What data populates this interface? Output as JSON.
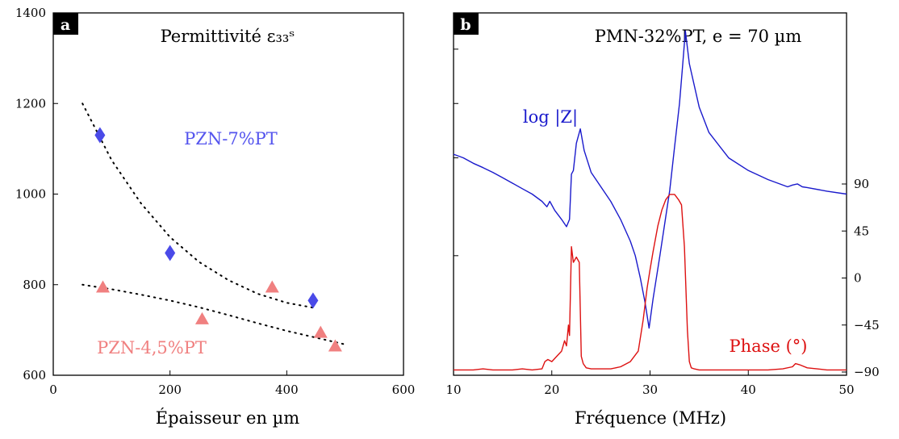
{
  "chart_data": [
    {
      "type": "scatter",
      "panel_label": "a",
      "title": "Permittivité ε₃₃ˢ",
      "xlabel": "Épaisseur en µm",
      "ylabel": "",
      "xlim": [
        0,
        600
      ],
      "ylim": [
        600,
        1400
      ],
      "x_ticks": [
        "0",
        "200",
        "400",
        "600"
      ],
      "y_ticks": [
        "600",
        "800",
        "1000",
        "1200",
        "1400"
      ],
      "grid": false,
      "series": [
        {
          "name": "PZN-7%PT",
          "marker": "diamond",
          "color": "#4a4ae8",
          "x": [
            80,
            200,
            445
          ],
          "y": [
            1130,
            870,
            765
          ],
          "fit": {
            "style": "dotted",
            "x": [
              50,
              100,
              150,
              200,
              250,
              300,
              350,
              400,
              450
            ],
            "y": [
              1200,
              1075,
              980,
              905,
              850,
              810,
              780,
              760,
              748
            ]
          }
        },
        {
          "name": "PZN-4,5%PT",
          "marker": "triangle",
          "color": "#f08080",
          "x": [
            85,
            255,
            375,
            458,
            483
          ],
          "y": [
            795,
            725,
            795,
            695,
            665
          ],
          "fit": {
            "style": "dotted",
            "x": [
              50,
              100,
              150,
              200,
              250,
              300,
              350,
              400,
              450,
              500
            ],
            "y": [
              800,
              790,
              778,
              765,
              750,
              733,
              715,
              698,
              683,
              668
            ]
          }
        }
      ]
    },
    {
      "type": "line",
      "panel_label": "b",
      "title": "PMN-32%PT, e = 70 µm",
      "xlabel": "Fréquence (MHz)",
      "ylabel": "",
      "xlim": [
        10,
        50
      ],
      "x_ticks": [
        "10",
        "20",
        "30",
        "40",
        "50"
      ],
      "right_axis": {
        "ylim": [
          -90,
          90
        ],
        "ticks": [
          "−90",
          "−45",
          "0",
          "45",
          "90"
        ]
      },
      "grid": false,
      "series": [
        {
          "name": "log |Z|",
          "color": "#1a1acc",
          "axis": "left-unlabeled",
          "ylim": [
            0,
            1
          ],
          "x": [
            10,
            11,
            12,
            13,
            14,
            15,
            16,
            17,
            18,
            19,
            19.5,
            19.8,
            20.3,
            21,
            21.5,
            21.8,
            22,
            22.2,
            22.5,
            22.9,
            23.3,
            24,
            25,
            26,
            27,
            28,
            28.5,
            29,
            29.5,
            29.9,
            30.3,
            31,
            31.5,
            32,
            32.5,
            33,
            33.3,
            33.6,
            34,
            35,
            36,
            38,
            40,
            42,
            44,
            44.5,
            45,
            45.5,
            46,
            48,
            50
          ],
          "y": [
            0.61,
            0.6,
            0.585,
            0.573,
            0.56,
            0.545,
            0.53,
            0.515,
            0.5,
            0.48,
            0.465,
            0.48,
            0.455,
            0.43,
            0.41,
            0.43,
            0.555,
            0.565,
            0.64,
            0.68,
            0.62,
            0.56,
            0.52,
            0.48,
            0.43,
            0.37,
            0.33,
            0.27,
            0.2,
            0.13,
            0.21,
            0.33,
            0.42,
            0.51,
            0.63,
            0.75,
            0.85,
            0.95,
            0.86,
            0.74,
            0.67,
            0.6,
            0.565,
            0.54,
            0.52,
            0.525,
            0.528,
            0.52,
            0.518,
            0.508,
            0.5
          ]
        },
        {
          "name": "Phase (°)",
          "color": "#dd1111",
          "axis": "right",
          "ylim": [
            -90,
            90
          ],
          "x": [
            10,
            11,
            12,
            13,
            14,
            15,
            16,
            17,
            18,
            19,
            19.3,
            19.6,
            20,
            20.5,
            21,
            21.3,
            21.5,
            21.7,
            21.8,
            22,
            22.2,
            22.5,
            22.8,
            23,
            23.2,
            23.5,
            24,
            25,
            26,
            27,
            28,
            28.8,
            29.3,
            29.7,
            30,
            30.3,
            30.8,
            31.2,
            31.6,
            32,
            32.5,
            32.9,
            33.2,
            33.5,
            33.8,
            34,
            34.2,
            34.5,
            35,
            36,
            38,
            40,
            42,
            43.5,
            44.5,
            44.8,
            45.2,
            46,
            47,
            48,
            50
          ],
          "y": [
            -88,
            -88,
            -88,
            -87,
            -88,
            -88,
            -88,
            -87,
            -88,
            -87,
            -80,
            -78,
            -80,
            -75,
            -70,
            -60,
            -65,
            -45,
            -55,
            30,
            15,
            20,
            15,
            -75,
            -82,
            -86,
            -87,
            -87,
            -87,
            -85,
            -80,
            -70,
            -40,
            -10,
            8,
            25,
            50,
            65,
            75,
            80,
            80,
            75,
            70,
            30,
            -50,
            -80,
            -86,
            -87,
            -88,
            -88,
            -88,
            -88,
            -88,
            -87,
            -85,
            -82,
            -83,
            -86,
            -87,
            -88,
            -88
          ]
        }
      ]
    }
  ]
}
